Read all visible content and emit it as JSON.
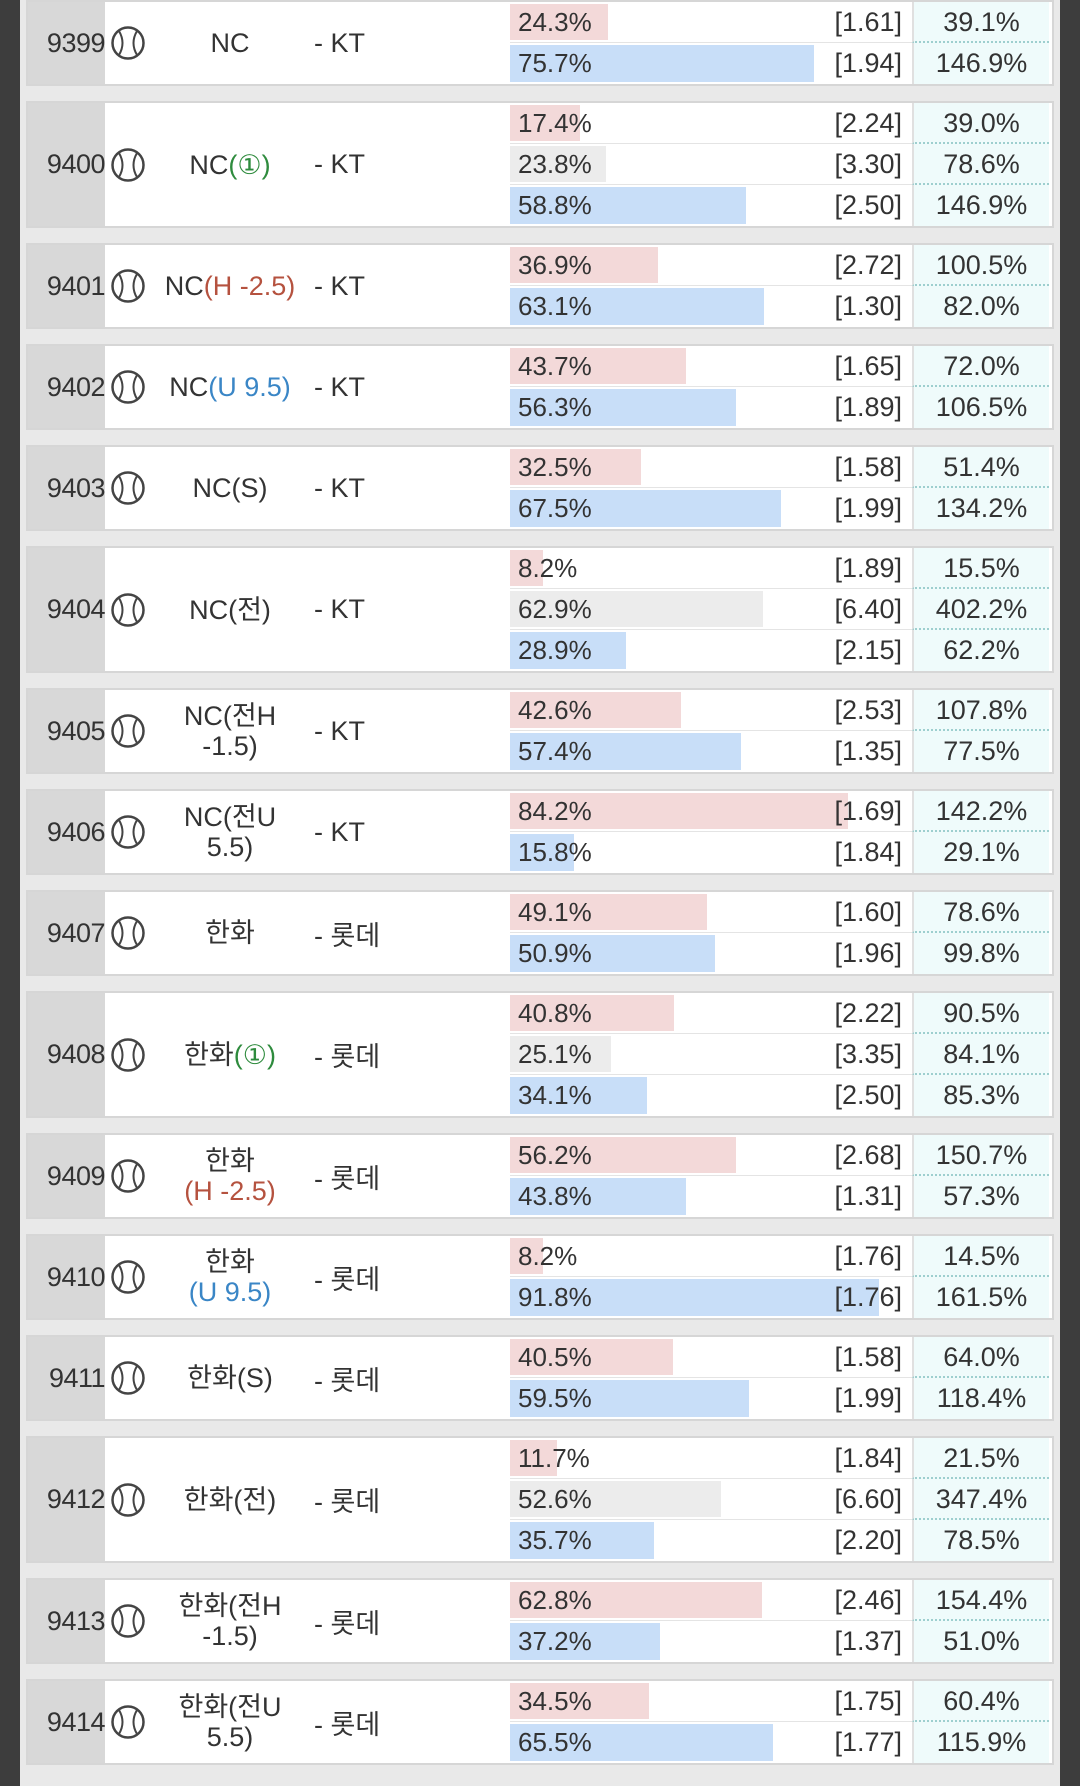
{
  "rows": [
    {
      "id": "9399",
      "home": "NC",
      "away": "- KT",
      "outcomes": [
        {
          "pct": 24.3,
          "pct_label": "24.3%",
          "odds": "[1.61]",
          "ret": "39.1%"
        },
        {
          "pct": 75.7,
          "pct_label": "75.7%",
          "odds": "[1.94]",
          "ret": "146.9%"
        }
      ]
    },
    {
      "id": "9400",
      "home": "NC",
      "mod": "(①)",
      "mod_color": "#2e8b3d",
      "away": "- KT",
      "outcomes": [
        {
          "pct": 17.4,
          "pct_label": "17.4%",
          "odds": "[2.24]",
          "ret": "39.0%"
        },
        {
          "pct": 23.8,
          "pct_label": "23.8%",
          "odds": "[3.30]",
          "ret": "78.6%"
        },
        {
          "pct": 58.8,
          "pct_label": "58.8%",
          "odds": "[2.50]",
          "ret": "146.9%"
        }
      ]
    },
    {
      "id": "9401",
      "home": "NC",
      "mod": "(H -2.5)",
      "mod_color": "#b5523f",
      "away": "- KT",
      "outcomes": [
        {
          "pct": 36.9,
          "pct_label": "36.9%",
          "odds": "[2.72]",
          "ret": "100.5%"
        },
        {
          "pct": 63.1,
          "pct_label": "63.1%",
          "odds": "[1.30]",
          "ret": "82.0%"
        }
      ]
    },
    {
      "id": "9402",
      "home": "NC",
      "mod": "(U 9.5)",
      "mod_color": "#3a86c6",
      "away": "- KT",
      "outcomes": [
        {
          "pct": 43.7,
          "pct_label": "43.7%",
          "odds": "[1.65]",
          "ret": "72.0%"
        },
        {
          "pct": 56.3,
          "pct_label": "56.3%",
          "odds": "[1.89]",
          "ret": "106.5%"
        }
      ]
    },
    {
      "id": "9403",
      "home": "NC",
      "mod": "(S)",
      "away": "- KT",
      "outcomes": [
        {
          "pct": 32.5,
          "pct_label": "32.5%",
          "odds": "[1.58]",
          "ret": "51.4%"
        },
        {
          "pct": 67.5,
          "pct_label": "67.5%",
          "odds": "[1.99]",
          "ret": "134.2%"
        }
      ]
    },
    {
      "id": "9404",
      "home": "NC",
      "mod": "(전)",
      "away": "- KT",
      "outcomes": [
        {
          "pct": 8.2,
          "pct_label": "8.2%",
          "odds": "[1.89]",
          "ret": "15.5%"
        },
        {
          "pct": 62.9,
          "pct_label": "62.9%",
          "odds": "[6.40]",
          "ret": "402.2%"
        },
        {
          "pct": 28.9,
          "pct_label": "28.9%",
          "odds": "[2.15]",
          "ret": "62.2%"
        }
      ]
    },
    {
      "id": "9405",
      "home": "NC",
      "mod": "(전H -1.5)",
      "away": "- KT",
      "outcomes": [
        {
          "pct": 42.6,
          "pct_label": "42.6%",
          "odds": "[2.53]",
          "ret": "107.8%"
        },
        {
          "pct": 57.4,
          "pct_label": "57.4%",
          "odds": "[1.35]",
          "ret": "77.5%"
        }
      ]
    },
    {
      "id": "9406",
      "home": "NC",
      "mod": "(전U 5.5)",
      "away": "- KT",
      "outcomes": [
        {
          "pct": 84.2,
          "pct_label": "84.2%",
          "odds": "[1.69]",
          "ret": "142.2%"
        },
        {
          "pct": 15.8,
          "pct_label": "15.8%",
          "odds": "[1.84]",
          "ret": "29.1%"
        }
      ]
    },
    {
      "id": "9407",
      "home": "한화",
      "away": "- 롯데",
      "outcomes": [
        {
          "pct": 49.1,
          "pct_label": "49.1%",
          "odds": "[1.60]",
          "ret": "78.6%"
        },
        {
          "pct": 50.9,
          "pct_label": "50.9%",
          "odds": "[1.96]",
          "ret": "99.8%"
        }
      ]
    },
    {
      "id": "9408",
      "home": "한화",
      "mod": "(①)",
      "mod_color": "#2e8b3d",
      "away": "- 롯데",
      "outcomes": [
        {
          "pct": 40.8,
          "pct_label": "40.8%",
          "odds": "[2.22]",
          "ret": "90.5%"
        },
        {
          "pct": 25.1,
          "pct_label": "25.1%",
          "odds": "[3.35]",
          "ret": "84.1%"
        },
        {
          "pct": 34.1,
          "pct_label": "34.1%",
          "odds": "[2.50]",
          "ret": "85.3%"
        }
      ]
    },
    {
      "id": "9409",
      "home": "한화",
      "mod": "(H -2.5)",
      "mod_color": "#b5523f",
      "away": "- 롯데",
      "outcomes": [
        {
          "pct": 56.2,
          "pct_label": "56.2%",
          "odds": "[2.68]",
          "ret": "150.7%"
        },
        {
          "pct": 43.8,
          "pct_label": "43.8%",
          "odds": "[1.31]",
          "ret": "57.3%"
        }
      ]
    },
    {
      "id": "9410",
      "home": "한화",
      "mod": "(U 9.5)",
      "mod_color": "#3a86c6",
      "away": "- 롯데",
      "outcomes": [
        {
          "pct": 8.2,
          "pct_label": "8.2%",
          "odds": "[1.76]",
          "ret": "14.5%"
        },
        {
          "pct": 91.8,
          "pct_label": "91.8%",
          "odds": "[1.76]",
          "ret": "161.5%"
        }
      ]
    },
    {
      "id": "9411",
      "home": "한화",
      "mod": "(S)",
      "away": "- 롯데",
      "outcomes": [
        {
          "pct": 40.5,
          "pct_label": "40.5%",
          "odds": "[1.58]",
          "ret": "64.0%"
        },
        {
          "pct": 59.5,
          "pct_label": "59.5%",
          "odds": "[1.99]",
          "ret": "118.4%"
        }
      ]
    },
    {
      "id": "9412",
      "home": "한화",
      "mod": "(전)",
      "away": "- 롯데",
      "outcomes": [
        {
          "pct": 11.7,
          "pct_label": "11.7%",
          "odds": "[1.84]",
          "ret": "21.5%"
        },
        {
          "pct": 52.6,
          "pct_label": "52.6%",
          "odds": "[6.60]",
          "ret": "347.4%"
        },
        {
          "pct": 35.7,
          "pct_label": "35.7%",
          "odds": "[2.20]",
          "ret": "78.5%"
        }
      ]
    },
    {
      "id": "9413",
      "home": "한화",
      "mod": "(전H -1.5)",
      "away": "- 롯데",
      "outcomes": [
        {
          "pct": 62.8,
          "pct_label": "62.8%",
          "odds": "[2.46]",
          "ret": "154.4%"
        },
        {
          "pct": 37.2,
          "pct_label": "37.2%",
          "odds": "[1.37]",
          "ret": "51.0%"
        }
      ]
    },
    {
      "id": "9414",
      "home": "한화",
      "mod": "(전U 5.5)",
      "away": "- 롯데",
      "outcomes": [
        {
          "pct": 34.5,
          "pct_label": "34.5%",
          "odds": "[1.75]",
          "ret": "60.4%"
        },
        {
          "pct": 65.5,
          "pct_label": "65.5%",
          "odds": "[1.77]",
          "ret": "115.9%"
        }
      ]
    }
  ]
}
